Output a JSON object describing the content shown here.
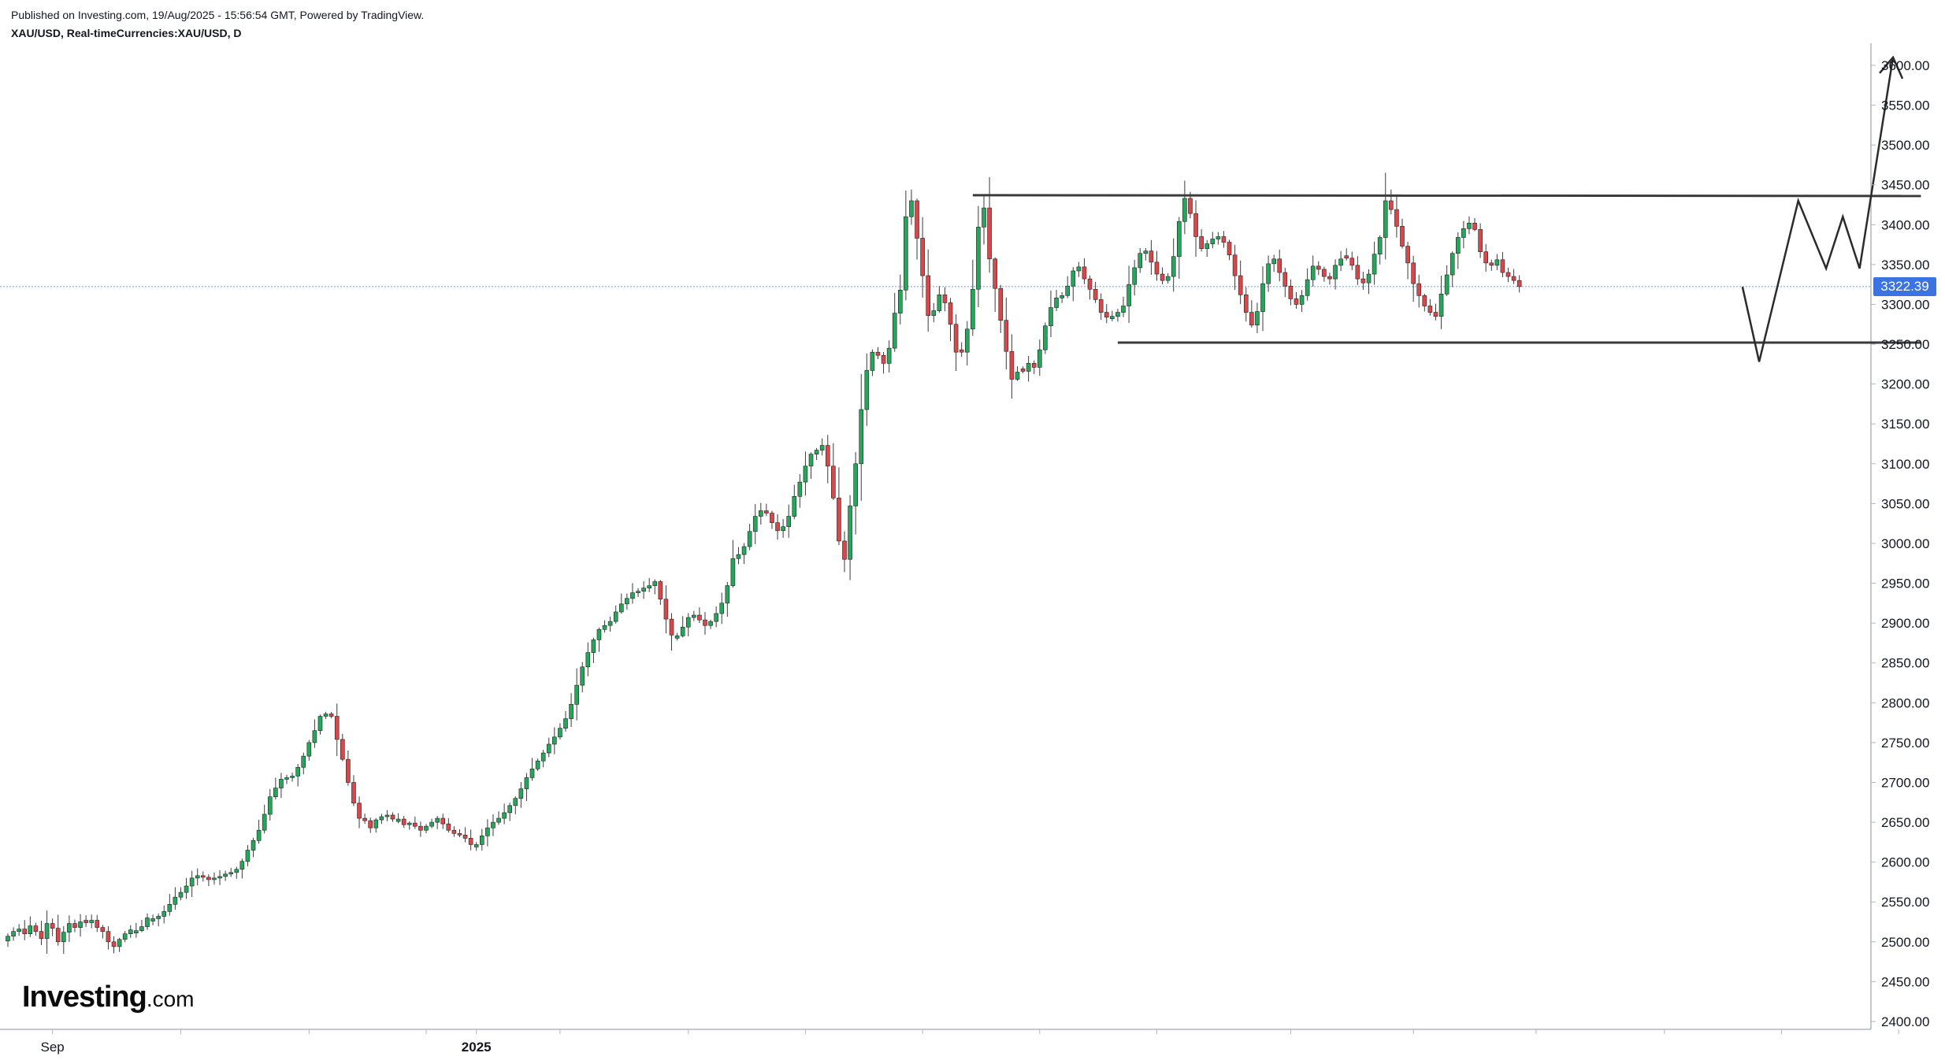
{
  "header": {
    "published": "Published on Investing.com, 19/Aug/2025 - 15:56:54 GMT, Powered by TradingView.",
    "symbol_line": "XAU/USD, Real-timeCurrencies:XAU/USD, D"
  },
  "logo": {
    "main": "Investing",
    "suffix": ".com"
  },
  "last_price": "3322.39",
  "colors": {
    "up": "#26a65b",
    "down": "#d9474b",
    "wick": "#3a3a3a",
    "badge": "#3b74e0",
    "lastline": "#6a9be6"
  },
  "chart_data": {
    "type": "candlestick",
    "symbol": "XAU/USD",
    "interval": "D",
    "ylim": [
      2400,
      3600
    ],
    "y_ticks": [
      "3600.00",
      "3550.00",
      "3500.00",
      "3450.00",
      "3400.00",
      "3350.00",
      "3300.00",
      "3250.00",
      "3200.00",
      "3150.00",
      "3100.00",
      "3050.00",
      "3000.00",
      "2950.00",
      "2900.00",
      "2850.00",
      "2800.00",
      "2750.00",
      "2700.00",
      "2650.00",
      "2600.00",
      "2550.00",
      "2500.00",
      "2450.00",
      "2400.00"
    ],
    "x_labels": [
      {
        "label": "Sep",
        "index": 8
      },
      {
        "label": "2025",
        "index": 84
      }
    ],
    "x_tick_indices": [
      8,
      31,
      54,
      75,
      84,
      99,
      122,
      143,
      164,
      185,
      206,
      230,
      252,
      274,
      297,
      318,
      339
    ],
    "last_price": 3322.39,
    "closes": [
      2507,
      2513,
      2516,
      2510,
      2520,
      2513,
      2504,
      2523,
      2517,
      2500,
      2512,
      2523,
      2518,
      2525,
      2524,
      2527,
      2518,
      2513,
      2500,
      2494,
      2503,
      2510,
      2515,
      2514,
      2519,
      2530,
      2529,
      2532,
      2538,
      2547,
      2556,
      2562,
      2570,
      2580,
      2583,
      2581,
      2578,
      2580,
      2582,
      2585,
      2587,
      2591,
      2601,
      2615,
      2627,
      2640,
      2660,
      2682,
      2693,
      2704,
      2706,
      2708,
      2719,
      2733,
      2750,
      2765,
      2783,
      2786,
      2783,
      2754,
      2729,
      2700,
      2674,
      2655,
      2652,
      2643,
      2653,
      2657,
      2659,
      2654,
      2654,
      2647,
      2649,
      2645,
      2640,
      2645,
      2650,
      2655,
      2648,
      2640,
      2636,
      2634,
      2630,
      2622,
      2622,
      2633,
      2643,
      2650,
      2655,
      2662,
      2671,
      2680,
      2692,
      2706,
      2717,
      2727,
      2737,
      2748,
      2757,
      2768,
      2780,
      2798,
      2822,
      2845,
      2863,
      2879,
      2892,
      2897,
      2902,
      2914,
      2924,
      2931,
      2938,
      2940,
      2944,
      2947,
      2952,
      2930,
      2905,
      2885,
      2884,
      2895,
      2907,
      2910,
      2904,
      2897,
      2902,
      2912,
      2925,
      2947,
      2981,
      2986,
      2996,
      3015,
      3034,
      3041,
      3038,
      3026,
      3016,
      3021,
      3034,
      3059,
      3077,
      3097,
      3112,
      3117,
      3123,
      3097,
      3057,
      3003,
      2980,
      3047,
      3100,
      3168,
      3217,
      3240,
      3236,
      3226,
      3245,
      3289,
      3318,
      3410,
      3430,
      3383,
      3336,
      3286,
      3292,
      3312,
      3302,
      3275,
      3240,
      3240,
      3269,
      3319,
      3397,
      3421,
      3357,
      3320,
      3280,
      3241,
      3206,
      3215,
      3216,
      3226,
      3221,
      3243,
      3273,
      3296,
      3308,
      3311,
      3323,
      3342,
      3347,
      3332,
      3319,
      3306,
      3290,
      3284,
      3285,
      3290,
      3298,
      3325,
      3346,
      3364,
      3367,
      3353,
      3338,
      3330,
      3335,
      3360,
      3404,
      3433,
      3414,
      3385,
      3370,
      3376,
      3382,
      3385,
      3378,
      3362,
      3336,
      3312,
      3290,
      3274,
      3291,
      3326,
      3351,
      3357,
      3340,
      3323,
      3307,
      3300,
      3311,
      3331,
      3348,
      3344,
      3335,
      3332,
      3349,
      3357,
      3358,
      3349,
      3332,
      3327,
      3338,
      3363,
      3384,
      3430,
      3419,
      3398,
      3373,
      3352,
      3326,
      3311,
      3298,
      3290,
      3285,
      3313,
      3337,
      3364,
      3384,
      3395,
      3402,
      3394,
      3366,
      3352,
      3349,
      3356,
      3340,
      3335,
      3330,
      3322.39
    ]
  }
}
